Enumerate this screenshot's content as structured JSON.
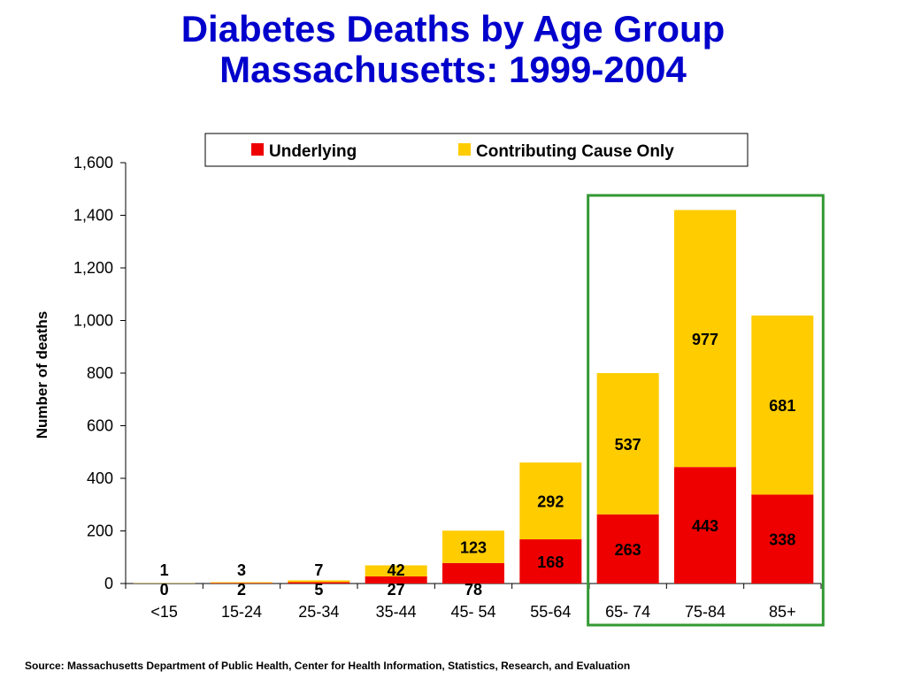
{
  "title_line1": "Diabetes Deaths by Age Group",
  "title_line2": "Massachusetts: 1999-2004",
  "source": "Source:  Massachusetts Department of Public Health, Center for Health Information, Statistics, Research, and Evaluation",
  "colors": {
    "title": "#0000cc",
    "underlying": "#ee0000",
    "contributing": "#ffcc00",
    "highlight_box": "#339933"
  },
  "chart_data": {
    "type": "bar",
    "stacked": true,
    "title": "",
    "xlabel": "",
    "ylabel": "Number of deaths",
    "ylim": [
      0,
      1600
    ],
    "yticks": [
      0,
      200,
      400,
      600,
      800,
      1000,
      1200,
      1400,
      1600
    ],
    "ytick_labels": [
      "0",
      "200",
      "400",
      "600",
      "800",
      "1,000",
      "1,200",
      "1,400",
      "1,600"
    ],
    "categories": [
      "<15",
      "15-24",
      "25-34",
      "35-44",
      "45- 54",
      "55-64",
      "65- 74",
      "75-84",
      "85+"
    ],
    "series": [
      {
        "name": "Underlying",
        "values": [
          0,
          2,
          5,
          27,
          78,
          168,
          263,
          443,
          338
        ]
      },
      {
        "name": "Contributing Cause Only",
        "values": [
          1,
          3,
          7,
          42,
          123,
          292,
          537,
          977,
          681
        ]
      }
    ],
    "legend_position": "top",
    "highlighted_categories": [
      "65- 74",
      "75-84",
      "85+"
    ]
  }
}
